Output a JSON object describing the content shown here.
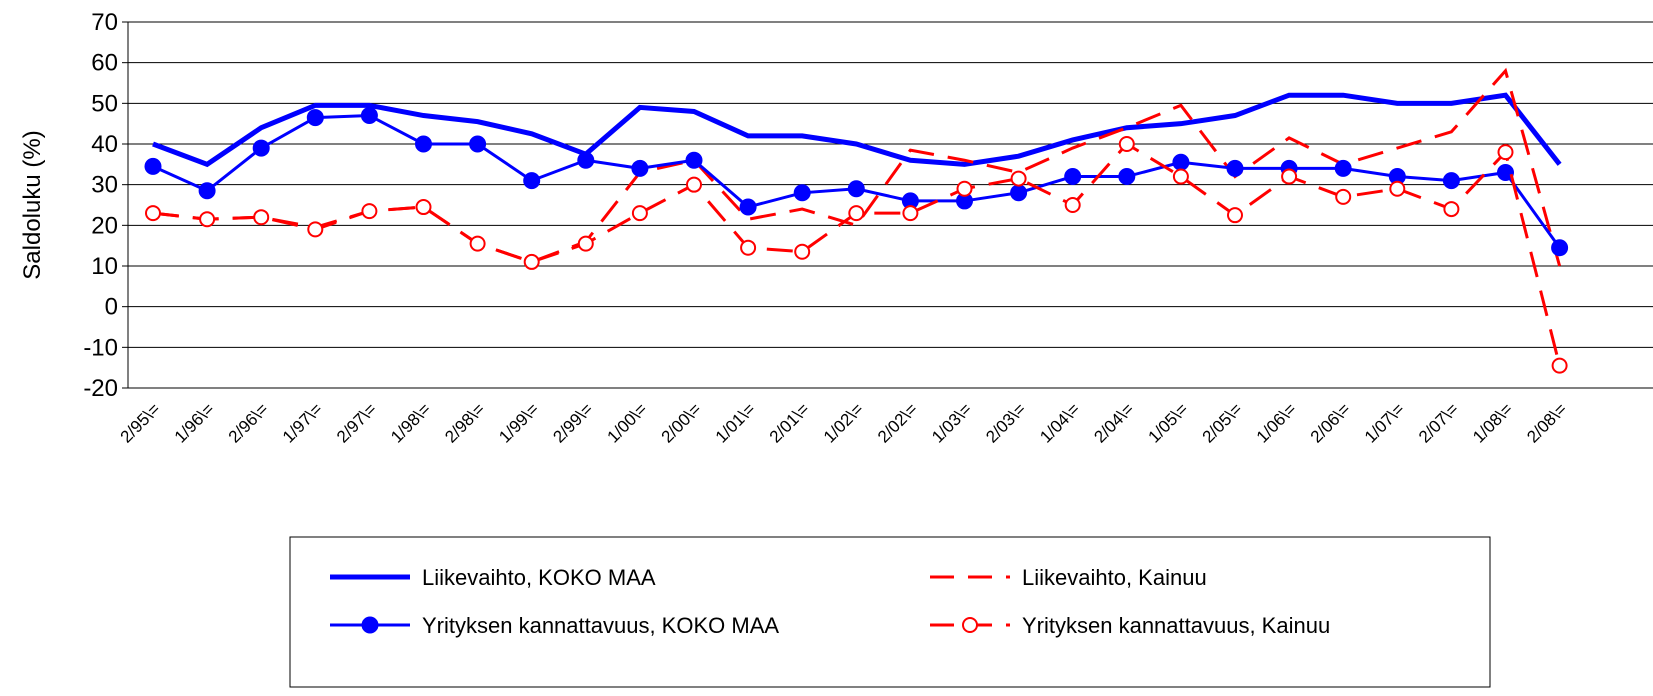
{
  "chart_data": {
    "type": "line",
    "y_label": "Saldoluku (%)",
    "categories": [
      "2/95\\=",
      "1/96\\=",
      "2/96\\=",
      "1/97\\=",
      "2/97\\=",
      "1/98\\=",
      "2/98\\=",
      "1/99\\=",
      "2/99\\=",
      "1/00\\=",
      "2/00\\=",
      "1/01\\=",
      "2/01\\=",
      "1/02\\=",
      "2/02\\=",
      "1/03\\=",
      "2/03\\=",
      "1/04\\=",
      "2/04\\=",
      "1/05\\=",
      "2/05\\=",
      "1/06\\=",
      "2/06\\=",
      "1/07\\=",
      "2/07\\=",
      "1/08\\=",
      "2/08\\="
    ],
    "series": [
      {
        "name": "Liikevaihto, KOKO MAA",
        "color": "#0000ff",
        "line_width": 5,
        "dashed": false,
        "marker": "none",
        "values": [
          40,
          35,
          44,
          49.5,
          49.5,
          47,
          45.5,
          42.5,
          37.5,
          49,
          48,
          42,
          42,
          40,
          36,
          35,
          37,
          41,
          44,
          45,
          47,
          52,
          52,
          50,
          50,
          52,
          35
        ]
      },
      {
        "name": "Liikevaihto, Kainuu",
        "color": "#ff0000",
        "line_width": 3,
        "dashed": true,
        "marker": "none",
        "values": [
          23,
          21.5,
          22,
          19.5,
          23.5,
          24.5,
          15.5,
          11,
          16,
          33,
          36,
          21.5,
          24,
          20,
          38.5,
          36,
          33,
          39,
          44,
          49.5,
          32,
          41.5,
          35,
          39,
          43,
          58,
          10
        ]
      },
      {
        "name": "Yrityksen kannattavuus, KOKO MAA",
        "color": "#0000ff",
        "line_width": 3,
        "dashed": false,
        "marker": "filled",
        "values": [
          34.5,
          28.5,
          39,
          46.5,
          47,
          40,
          40,
          31,
          36,
          34,
          36,
          24.5,
          28,
          29,
          26,
          26,
          28,
          32,
          32,
          35.5,
          34,
          34,
          34,
          32,
          31,
          33,
          14.5
        ]
      },
      {
        "name": "Yrityksen kannattavuus, Kainuu",
        "color": "#ff0000",
        "line_width": 3,
        "dashed": true,
        "marker": "open",
        "values": [
          23,
          21.5,
          22,
          19,
          23.5,
          24.5,
          15.5,
          11,
          15.5,
          23,
          30,
          14.5,
          13.5,
          23,
          23,
          29,
          31.5,
          25,
          40,
          32,
          22.5,
          32,
          27,
          29,
          24,
          38,
          -14.5
        ]
      }
    ],
    "ylim": [
      -20,
      70
    ],
    "yticks": [
      -20,
      -10,
      0,
      10,
      20,
      30,
      40,
      50,
      60,
      70
    ],
    "grid": true
  }
}
